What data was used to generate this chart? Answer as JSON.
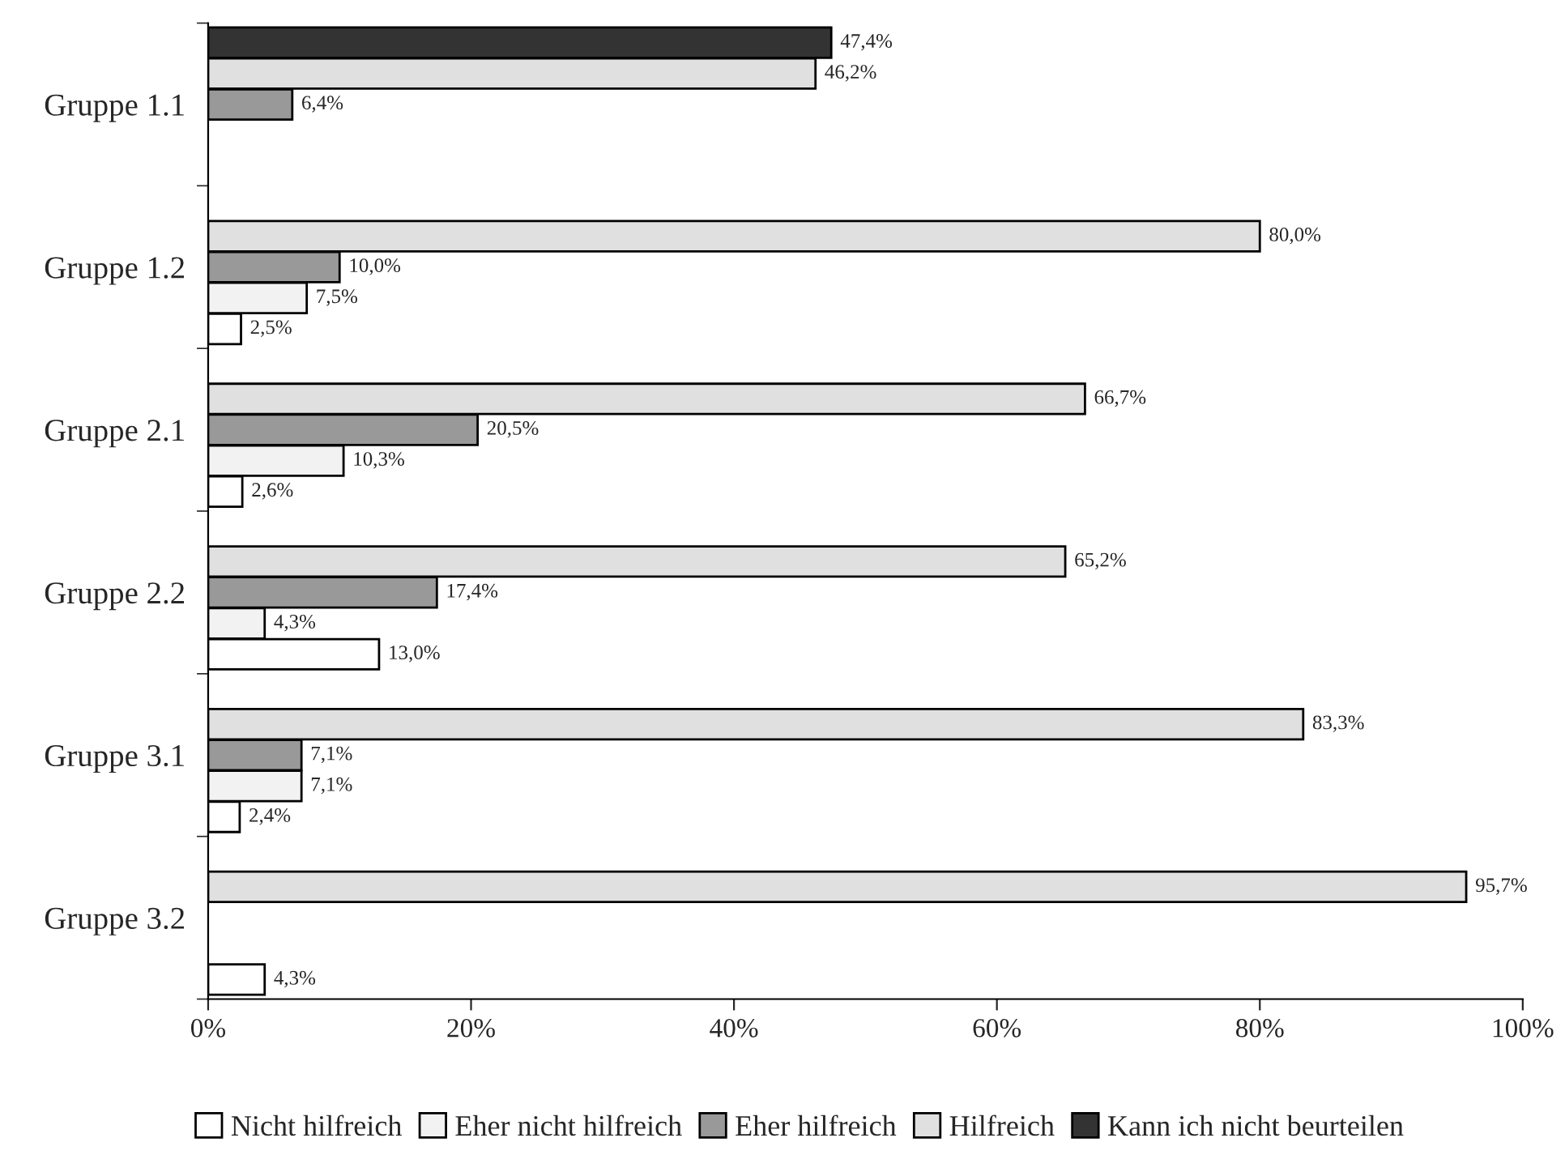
{
  "chart_data": {
    "type": "bar",
    "orientation": "horizontal",
    "categories": [
      "Gruppe 1.1",
      "Gruppe 1.2",
      "Gruppe 2.1",
      "Gruppe 2.2",
      "Gruppe 3.1",
      "Gruppe 3.2"
    ],
    "series": [
      {
        "name": "Nicht hilfreich",
        "color": "#ffffff",
        "values": [
          null,
          2.5,
          2.6,
          13.0,
          2.4,
          4.3
        ],
        "value_labels": [
          null,
          "2,5%",
          "2,6%",
          "13,0%",
          "2,4%",
          "4,3%"
        ]
      },
      {
        "name": "Eher nicht hilfreich",
        "color": "#f2f2f2",
        "values": [
          null,
          7.5,
          10.3,
          4.3,
          7.1,
          null
        ],
        "value_labels": [
          null,
          "7,5%",
          "10,3%",
          "4,3%",
          "7,1%",
          null
        ]
      },
      {
        "name": "Eher hilfreich",
        "color": "#999999",
        "values": [
          6.4,
          10.0,
          20.5,
          17.4,
          7.1,
          null
        ],
        "value_labels": [
          "6,4%",
          "10,0%",
          "20,5%",
          "17,4%",
          "7,1%",
          null
        ]
      },
      {
        "name": "Hilfreich",
        "color": "#e0e0e0",
        "values": [
          46.2,
          80.0,
          66.7,
          65.2,
          83.3,
          95.7
        ],
        "value_labels": [
          "46,2%",
          "80,0%",
          "66,7%",
          "65,2%",
          "83,3%",
          "95,7%"
        ]
      },
      {
        "name": "Kann ich nicht beurteilen",
        "color": "#333333",
        "values": [
          47.4,
          null,
          null,
          null,
          null,
          null
        ],
        "value_labels": [
          "47,4%",
          null,
          null,
          null,
          null,
          null
        ]
      }
    ],
    "xlim": [
      0,
      100
    ],
    "xticks": [
      {
        "value": 0,
        "label": "0%"
      },
      {
        "value": 20,
        "label": "20%"
      },
      {
        "value": 40,
        "label": "40%"
      },
      {
        "value": 60,
        "label": "60%"
      },
      {
        "value": 80,
        "label": "80%"
      },
      {
        "value": 100,
        "label": "100%"
      }
    ],
    "grid": false,
    "legend": "bottom"
  }
}
